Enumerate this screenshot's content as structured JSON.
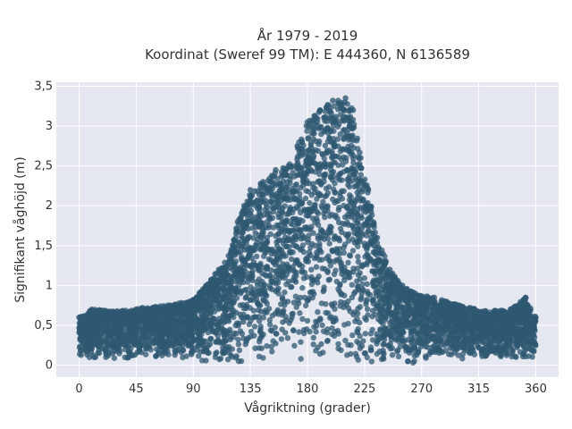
{
  "chart_data": {
    "type": "scatter",
    "title_line1": "År 1979 - 2019",
    "title_line2": "Koordinat (Sweref 99 TM): E 444360, N 6136589",
    "xlabel": "Vågriktning (grader)",
    "ylabel": "Signifikant våghöjd (m)",
    "xlim": [
      -18,
      378
    ],
    "ylim": [
      -0.15,
      3.55
    ],
    "x_ticks": [
      0,
      45,
      90,
      135,
      180,
      225,
      270,
      315,
      360
    ],
    "x_tick_labels": [
      "0",
      "45",
      "90",
      "135",
      "180",
      "225",
      "270",
      "315",
      "360"
    ],
    "y_ticks": [
      0,
      0.5,
      1,
      1.5,
      2,
      2.5,
      3,
      3.5
    ],
    "y_tick_labels": [
      "0",
      "0,5",
      "1",
      "1,5",
      "2",
      "2,5",
      "3",
      "3,5"
    ],
    "grid": true,
    "marker_color": "#2f5872",
    "plot_bg": "#e5e8f0",
    "envelope": [
      {
        "x": 0,
        "y": 0.6
      },
      {
        "x": 10,
        "y": 0.7
      },
      {
        "x": 30,
        "y": 0.68
      },
      {
        "x": 50,
        "y": 0.72
      },
      {
        "x": 70,
        "y": 0.75
      },
      {
        "x": 90,
        "y": 0.82
      },
      {
        "x": 100,
        "y": 1.0
      },
      {
        "x": 110,
        "y": 1.2
      },
      {
        "x": 120,
        "y": 1.45
      },
      {
        "x": 125,
        "y": 1.8
      },
      {
        "x": 130,
        "y": 2.0
      },
      {
        "x": 135,
        "y": 2.2
      },
      {
        "x": 145,
        "y": 2.3
      },
      {
        "x": 155,
        "y": 2.45
      },
      {
        "x": 165,
        "y": 2.5
      },
      {
        "x": 172,
        "y": 2.75
      },
      {
        "x": 180,
        "y": 3.05
      },
      {
        "x": 190,
        "y": 3.2
      },
      {
        "x": 200,
        "y": 3.32
      },
      {
        "x": 210,
        "y": 3.35
      },
      {
        "x": 216,
        "y": 3.2
      },
      {
        "x": 222,
        "y": 2.6
      },
      {
        "x": 228,
        "y": 2.2
      },
      {
        "x": 235,
        "y": 1.6
      },
      {
        "x": 245,
        "y": 1.2
      },
      {
        "x": 255,
        "y": 1.0
      },
      {
        "x": 265,
        "y": 0.9
      },
      {
        "x": 280,
        "y": 0.85
      },
      {
        "x": 300,
        "y": 0.75
      },
      {
        "x": 320,
        "y": 0.68
      },
      {
        "x": 340,
        "y": 0.7
      },
      {
        "x": 352,
        "y": 0.85
      },
      {
        "x": 360,
        "y": 0.6
      }
    ]
  }
}
